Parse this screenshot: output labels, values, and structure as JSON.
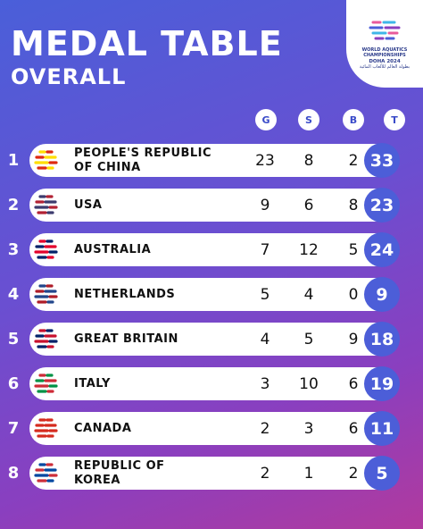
{
  "header": {
    "title": "MEDAL TABLE",
    "subtitle": "OVERALL"
  },
  "logo": {
    "line1": "WORLD AQUATICS",
    "line2": "CHAMPIONSHIPS",
    "line3": "DOHA 2024",
    "line4": "بطولة العالم للألعاب المائية"
  },
  "columns": {
    "g": "G",
    "s": "S",
    "b": "B",
    "t": "T"
  },
  "rows": [
    {
      "rank": "1",
      "name1": "PEOPLE'S REPUBLIC",
      "name2": "OF CHINA",
      "g": "23",
      "s": "8",
      "b": "2",
      "t": "33",
      "flag_colors": [
        "#de2910",
        "#ffde00"
      ]
    },
    {
      "rank": "2",
      "name1": "USA",
      "name2": "",
      "g": "9",
      "s": "6",
      "b": "8",
      "t": "23",
      "flag_colors": [
        "#b22234",
        "#3c3b6e"
      ]
    },
    {
      "rank": "3",
      "name1": "AUSTRALIA",
      "name2": "",
      "g": "7",
      "s": "12",
      "b": "5",
      "t": "24",
      "flag_colors": [
        "#012169",
        "#e4002b"
      ]
    },
    {
      "rank": "4",
      "name1": "NETHERLANDS",
      "name2": "",
      "g": "5",
      "s": "4",
      "b": "0",
      "t": "9",
      "flag_colors": [
        "#ae1c28",
        "#21468b"
      ]
    },
    {
      "rank": "5",
      "name1": "GREAT BRITAIN",
      "name2": "",
      "g": "4",
      "s": "5",
      "b": "9",
      "t": "18",
      "flag_colors": [
        "#012169",
        "#c8102e"
      ]
    },
    {
      "rank": "6",
      "name1": "ITALY",
      "name2": "",
      "g": "3",
      "s": "10",
      "b": "6",
      "t": "19",
      "flag_colors": [
        "#009246",
        "#ce2b37"
      ]
    },
    {
      "rank": "7",
      "name1": "CANADA",
      "name2": "",
      "g": "2",
      "s": "3",
      "b": "6",
      "t": "11",
      "flag_colors": [
        "#d52b1e",
        "#d52b1e"
      ]
    },
    {
      "rank": "8",
      "name1": "REPUBLIC OF",
      "name2": "KOREA",
      "g": "2",
      "s": "1",
      "b": "2",
      "t": "5",
      "flag_colors": [
        "#cd2e3a",
        "#0047a0"
      ]
    }
  ]
}
